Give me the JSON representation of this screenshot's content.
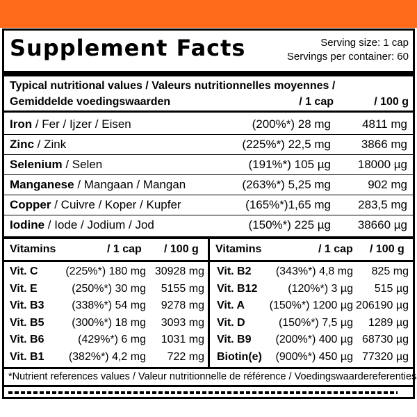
{
  "title": "Supplement Facts",
  "serving_size": "Serving size: 1 cap",
  "servings_per_container": "Servings per container: 60",
  "header": {
    "line1": "Typical nutritional values / Valeurs nutritionnelles moyennes /",
    "line2": "Gemiddelde voedingswaarden",
    "col1": "/ 1 cap",
    "col2": "/ 100 g"
  },
  "minerals": [
    {
      "bold": "Iron",
      "rest": " / Fer / Ijzer / Eisen",
      "per_cap": "(200%*) 28 mg",
      "per_100g": "4811 mg"
    },
    {
      "bold": "Zinc",
      "rest": " / Zink",
      "per_cap": "(225%*) 22,5 mg",
      "per_100g": "3866 mg"
    },
    {
      "bold": "Selenium",
      "rest": " / Selen",
      "per_cap": "(191%*) 105 µg",
      "per_100g": "18000 µg"
    },
    {
      "bold": "Manganese",
      "rest": " / Mangaan / Mangan",
      "per_cap": "(263%*) 5,25 mg",
      "per_100g": "902 mg"
    },
    {
      "bold": "Copper",
      "rest": " / Cuivre / Koper / Kupfer",
      "per_cap": "(165%*)1,65 mg",
      "per_100g": "283,5 mg"
    },
    {
      "bold": "Iodine",
      "rest": " / Iode / Jodium / Jod",
      "per_cap": "(150%*) 225 µg",
      "per_100g": "38660 µg"
    }
  ],
  "vitamins_header": {
    "label": "Vitamins",
    "col1": "/ 1 cap",
    "col2": "/ 100 g"
  },
  "vitamins_left": [
    {
      "name": "Vit. C",
      "per_cap": "(225%*) 180 mg",
      "per_100g": "30928 mg"
    },
    {
      "name": "Vit. E",
      "per_cap": "(250%*) 30 mg",
      "per_100g": "5155 mg"
    },
    {
      "name": "Vit. B3",
      "per_cap": "(338%*) 54 mg",
      "per_100g": "9278 mg"
    },
    {
      "name": "Vit. B5",
      "per_cap": "(300%*) 18 mg",
      "per_100g": "3093 mg"
    },
    {
      "name": "Vit. B6",
      "per_cap": "(429%*) 6 mg",
      "per_100g": "1031 mg"
    },
    {
      "name": "Vit. B1",
      "per_cap": "(382%*) 4,2 mg",
      "per_100g": "722 mg"
    }
  ],
  "vitamins_right": [
    {
      "name": "Vit. B2",
      "per_cap": "(343%*) 4,8 mg",
      "per_100g": "825 mg"
    },
    {
      "name": "Vit. B12",
      "per_cap": "(120%*) 3 µg",
      "per_100g": "515 µg"
    },
    {
      "name": "Vit. A",
      "per_cap": "(150%*) 1200 µg",
      "per_100g": "206190 µg"
    },
    {
      "name": "Vit. D",
      "per_cap": "(150%*) 7,5 µg",
      "per_100g": "1289 µg"
    },
    {
      "name": "Vit. B9",
      "per_cap": "(200%*) 400 µg",
      "per_100g": "68730 µg"
    },
    {
      "name": "Biotin(e)",
      "per_cap": "(900%*) 450 µg",
      "per_100g": "77320 µg"
    }
  ],
  "footnote": "*Nutrient references values / Valeur nutritionnelle de référence / Voedingswaardereferenties",
  "colors": {
    "accent": "#ff6a1a",
    "ink": "#000000",
    "background": "#ffffff"
  }
}
